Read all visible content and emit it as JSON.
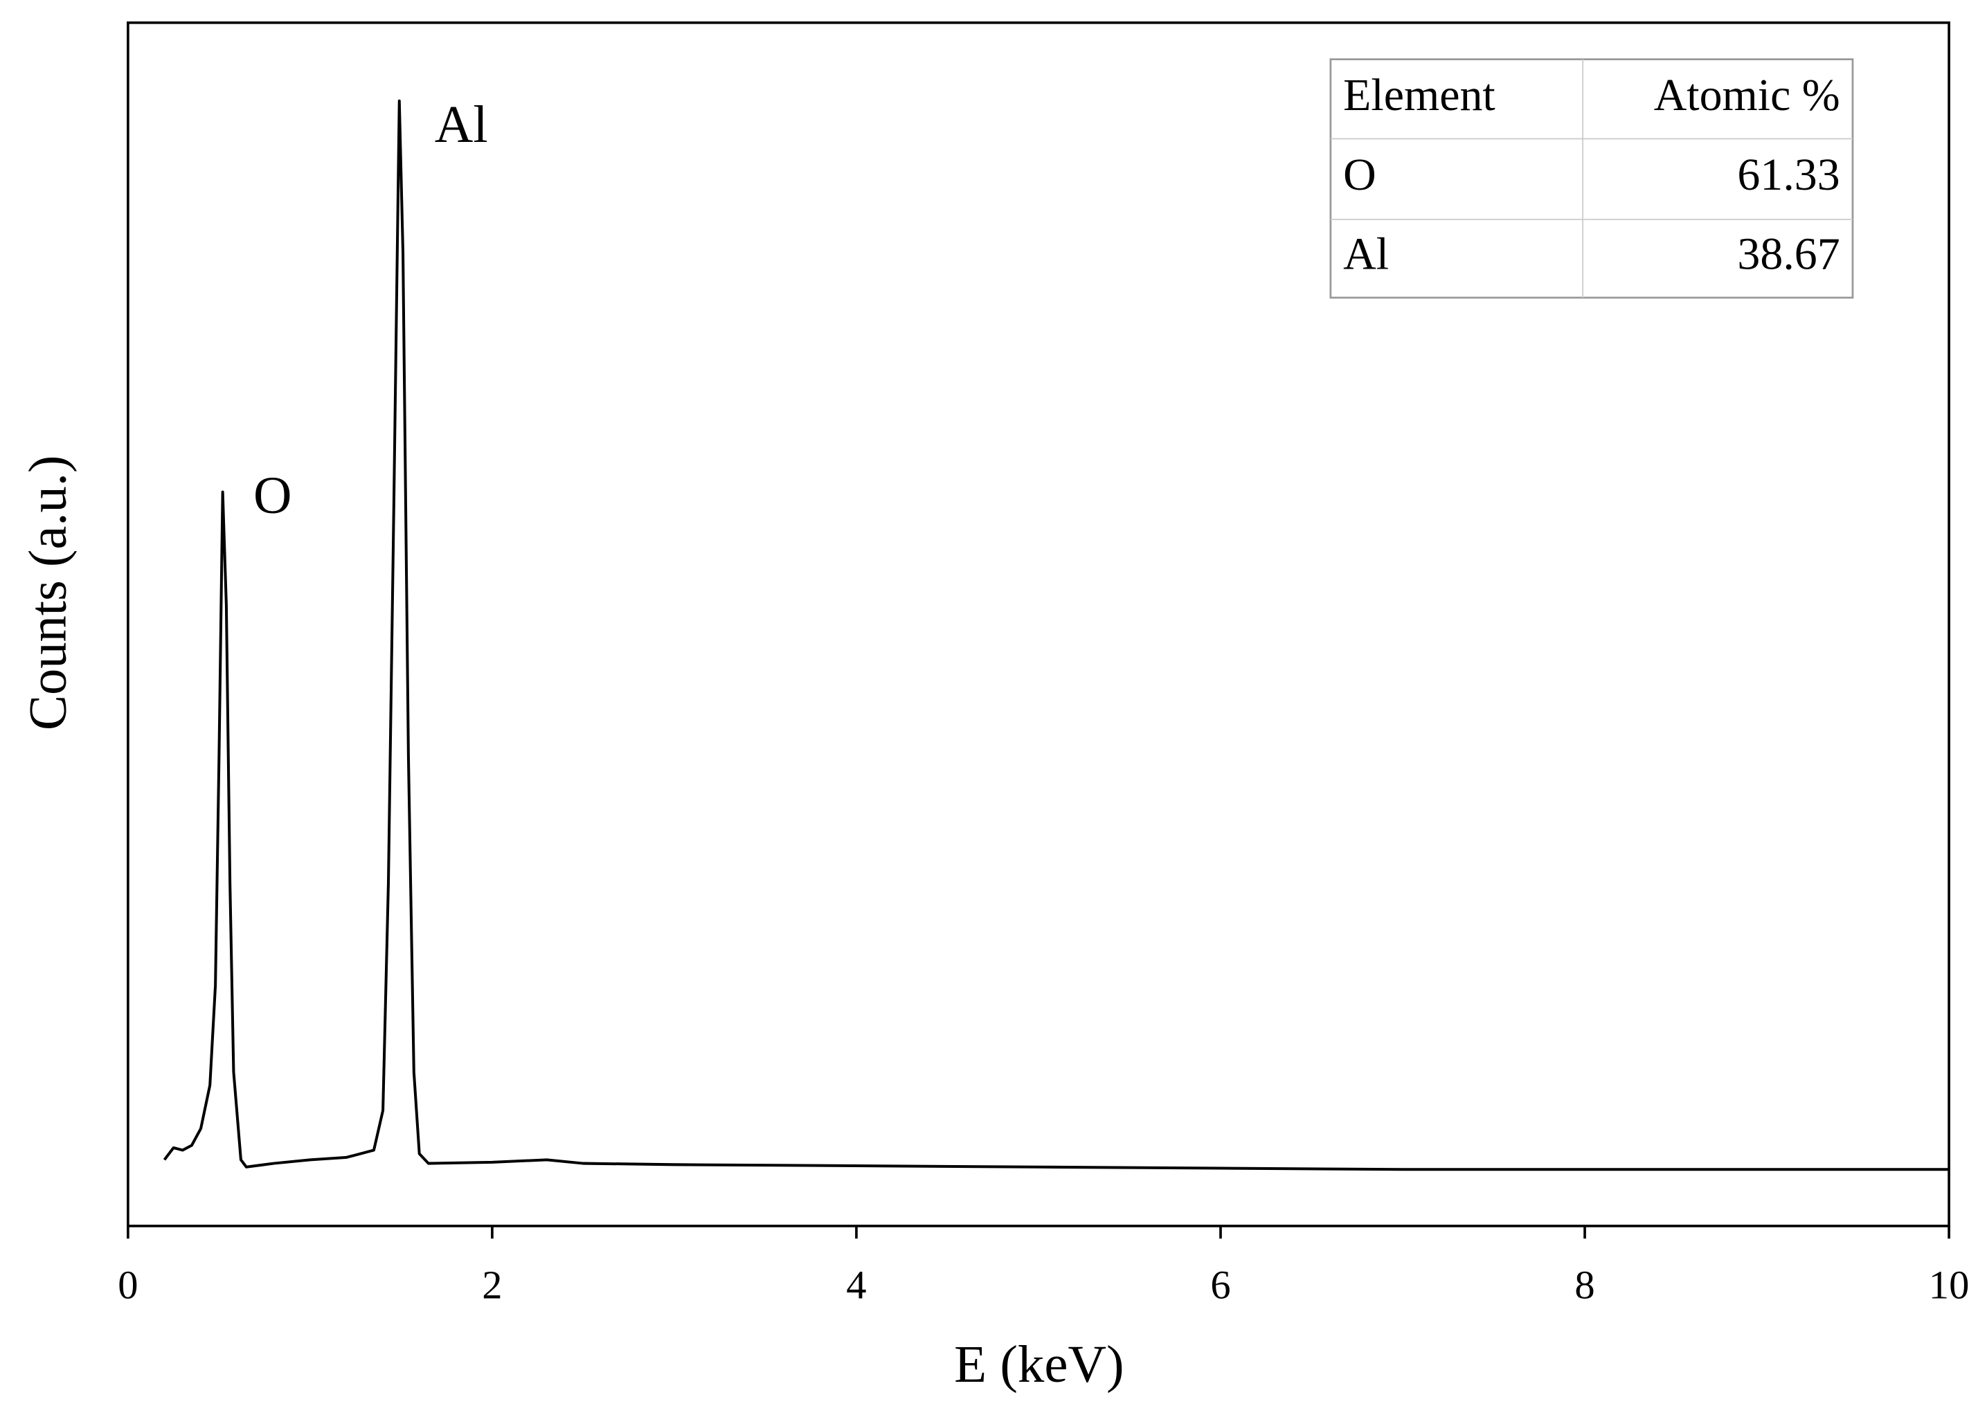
{
  "chart_data": {
    "type": "line",
    "x_label": "E (keV)",
    "y_label": "Counts (a.u.)",
    "xlim": [
      0,
      10
    ],
    "xticks": [
      0,
      2,
      4,
      6,
      8,
      10
    ],
    "ylim": [
      0,
      100
    ],
    "color": "#000000",
    "x": [
      0.2,
      0.25,
      0.3,
      0.35,
      0.4,
      0.45,
      0.48,
      0.5,
      0.52,
      0.54,
      0.56,
      0.58,
      0.62,
      0.65,
      0.8,
      1.0,
      1.2,
      1.35,
      1.4,
      1.43,
      1.46,
      1.49,
      1.51,
      1.54,
      1.57,
      1.6,
      1.65,
      2.0,
      2.3,
      2.5,
      3,
      4,
      5,
      6,
      7,
      8,
      9,
      10
    ],
    "values": [
      5.5,
      6.5,
      6.3,
      6.7,
      8.1,
      11.7,
      20,
      39,
      61,
      51.6,
      28.5,
      12.8,
      5.5,
      4.9,
      5.2,
      5.5,
      5.7,
      6.3,
      9.6,
      28.5,
      60,
      93.5,
      80.9,
      39,
      12.8,
      6.0,
      5.2,
      5.3,
      5.5,
      5.2,
      5.1,
      5.0,
      4.9,
      4.8,
      4.7,
      4.7,
      4.7,
      4.7
    ],
    "annotations": [
      "O",
      "Al"
    ],
    "inset_table": {
      "columns": [
        "Element",
        "Atomic %"
      ],
      "rows": [
        [
          "O",
          61.33
        ],
        [
          "Al",
          38.67
        ]
      ]
    }
  }
}
